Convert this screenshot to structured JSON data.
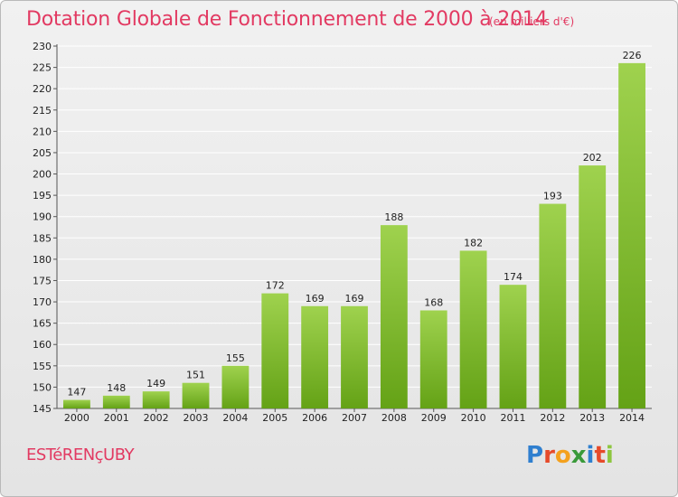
{
  "chart_data": {
    "type": "bar",
    "title": "Dotation Globale de Fonctionnement de 2000 à 2014",
    "subtitle": "(en milliers d'€)",
    "categories": [
      "2000",
      "2001",
      "2002",
      "2003",
      "2004",
      "2005",
      "2006",
      "2007",
      "2008",
      "2009",
      "2010",
      "2011",
      "2012",
      "2013",
      "2014"
    ],
    "values": [
      147,
      148,
      149,
      151,
      155,
      172,
      169,
      169,
      188,
      168,
      182,
      174,
      193,
      202,
      226
    ],
    "ylim": [
      145,
      230
    ],
    "ytick_step": 5,
    "grid": true,
    "bar_colors": {
      "light": "#9fd24e",
      "dark": "#64a216"
    },
    "grid_color": "#ffffff"
  },
  "footer": {
    "commune": "ESTéRENçUBY",
    "logo_letters": [
      {
        "ch": "P",
        "color": "#2f7fcf"
      },
      {
        "ch": "r",
        "color": "#e64a2a"
      },
      {
        "ch": "o",
        "color": "#f4a11d"
      },
      {
        "ch": "x",
        "color": "#3a9a3a"
      },
      {
        "ch": "i",
        "color": "#2f7fcf"
      },
      {
        "ch": "t",
        "color": "#e64a2a"
      },
      {
        "ch": "i",
        "color": "#8dc63f"
      }
    ]
  }
}
